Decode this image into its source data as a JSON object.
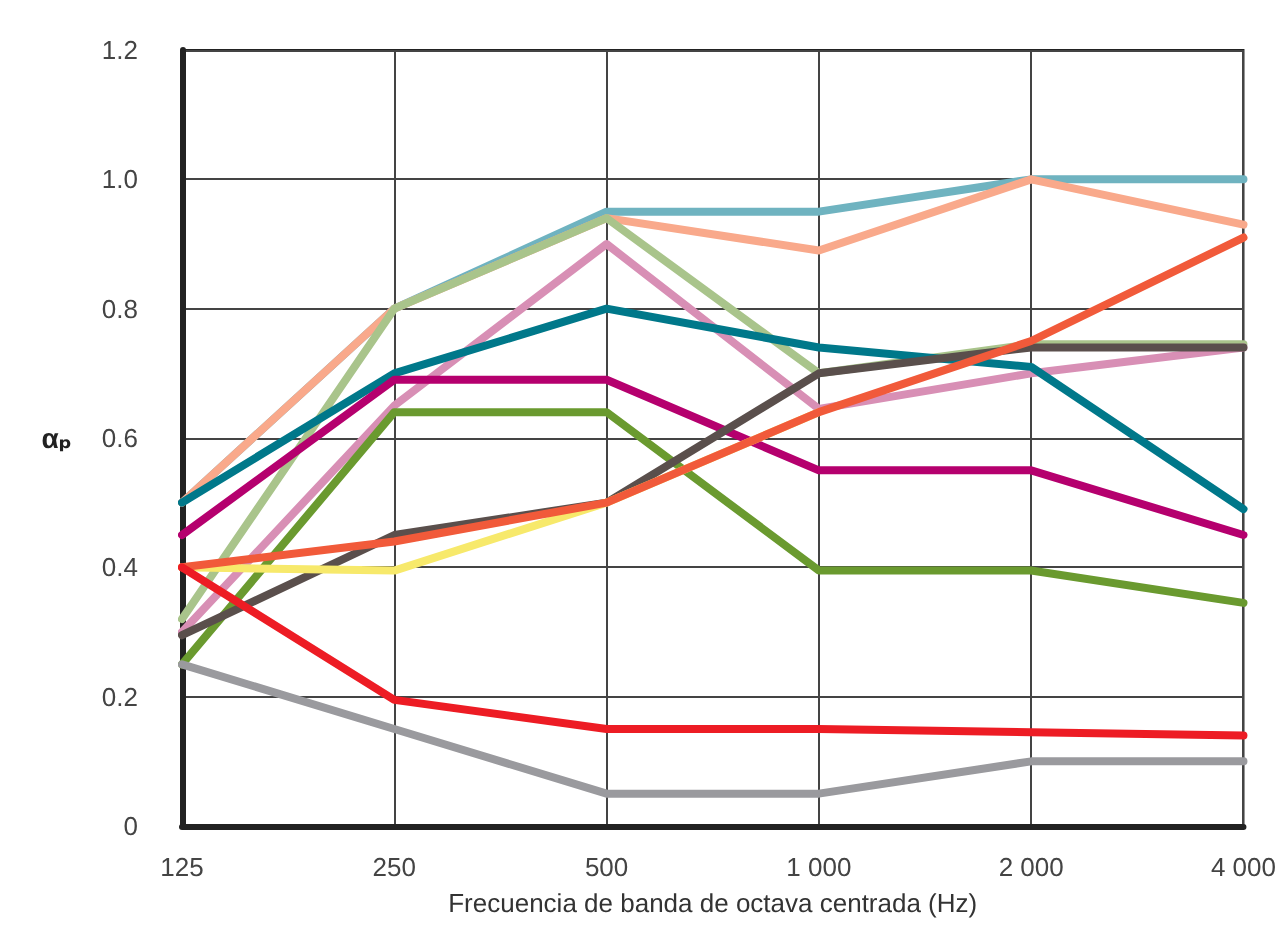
{
  "chart_data": {
    "type": "line",
    "xlabel": "Frecuencia de banda de octava centrada (Hz)",
    "ylabel": "αₚ",
    "categories": [
      "125",
      "250",
      "500",
      "1 000",
      "2 000",
      "4 000"
    ],
    "ylim": [
      0,
      1.2
    ],
    "yticks": [
      0,
      0.2,
      0.4,
      0.6,
      0.8,
      {
        "value": 1,
        "label": "1.0"
      },
      1.2
    ],
    "grid": true,
    "marker": "none",
    "line_style": "solid",
    "series": [
      {
        "color": "#6fb3c0",
        "values": [
          0.5,
          0.8,
          0.95,
          0.95,
          1.0,
          1.0
        ]
      },
      {
        "color": "#f9a98b",
        "values": [
          0.5,
          0.8,
          0.94,
          0.89,
          1.0,
          0.93
        ]
      },
      {
        "color": "#a9c48b",
        "values": [
          0.32,
          0.8,
          0.94,
          0.7,
          0.745,
          0.745
        ]
      },
      {
        "color": "#d88fb5",
        "values": [
          0.3,
          0.65,
          0.9,
          0.645,
          0.7,
          0.74
        ]
      },
      {
        "color": "#00788a",
        "values": [
          0.5,
          0.7,
          0.8,
          0.74,
          0.71,
          0.49
        ]
      },
      {
        "color": "#b5006e",
        "values": [
          0.45,
          0.69,
          0.69,
          0.55,
          0.55,
          0.45
        ]
      },
      {
        "color": "#6a9a2f",
        "values": [
          0.25,
          0.64,
          0.64,
          0.395,
          0.395,
          0.345
        ]
      },
      {
        "color": "#5a4f4c",
        "values": [
          0.295,
          0.45,
          0.5,
          0.7,
          0.74,
          0.74
        ]
      },
      {
        "color": "#f7e96b",
        "values": [
          0.4,
          0.395,
          0.5,
          0.64,
          null,
          null
        ]
      },
      {
        "color": "#f15a3a",
        "values": [
          0.4,
          0.44,
          0.5,
          0.64,
          0.75,
          0.91
        ]
      },
      {
        "color": "#ed1c24",
        "values": [
          0.4,
          0.195,
          0.15,
          0.15,
          0.145,
          0.14
        ]
      },
      {
        "color": "#9a9a9e",
        "values": [
          0.25,
          0.15,
          0.05,
          0.05,
          0.1,
          0.1
        ]
      }
    ]
  }
}
